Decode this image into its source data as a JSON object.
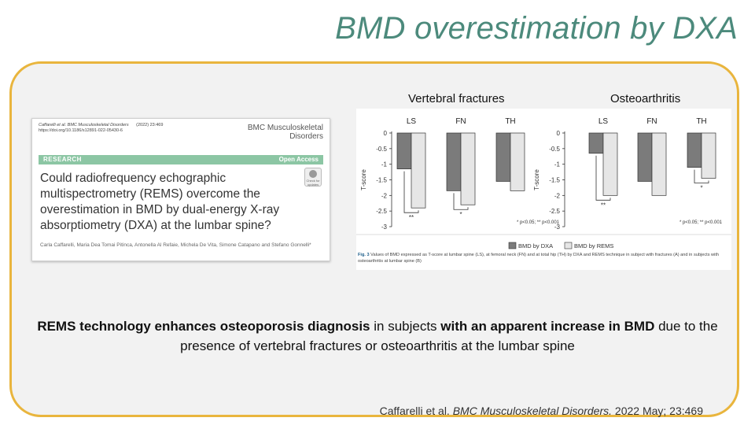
{
  "slide": {
    "title": "BMD overestimation by DXA"
  },
  "paper": {
    "citation_line1_journal": "Caffarelli et al. BMC Musculoskeletal Disorders",
    "citation_line1_volume": "(2022) 23:469",
    "citation_line2": "https://doi.org/10.1186/s12891-022-05430-6",
    "journal": "BMC Musculoskeletal Disorders",
    "section": "RESEARCH",
    "access": "Open Access",
    "badge": "Check for updates",
    "title": "Could radiofrequency echographic multispectrometry (REMS) overcome the overestimation in BMD by dual-energy X-ray absorptiometry (DXA) at the lumbar spine?",
    "authors": "Carla Caffarelli, Maria Dea Tomai Pitinca, Antonella Al Refaie, Michela De Vita, Simone Catapano and Stefano Gonnelli*"
  },
  "chart_data": [
    {
      "type": "bar",
      "title": "Vertebral fractures",
      "categories": [
        "LS",
        "FN",
        "TH"
      ],
      "ylabel": "T-score",
      "ylim": [
        -3,
        0
      ],
      "yticks": [
        "0",
        "-0.5",
        "-1",
        "-1.5",
        "-2",
        "-2.5",
        "-3"
      ],
      "series": [
        {
          "name": "BMD by DXA",
          "color": "#7b7b7b",
          "values": [
            -1.15,
            -1.85,
            -1.55
          ]
        },
        {
          "name": "BMD by REMS",
          "color": "#e6e6e6",
          "values": [
            -2.4,
            -2.3,
            -1.85
          ]
        }
      ],
      "significance": [
        "**",
        "*",
        ""
      ],
      "footnote": "* p<0.05; ** p<0.001"
    },
    {
      "type": "bar",
      "title": "Osteoarthritis",
      "categories": [
        "LS",
        "FN",
        "TH"
      ],
      "ylabel": "T-score",
      "ylim": [
        -3,
        0
      ],
      "yticks": [
        "0",
        "-0.5",
        "-1",
        "-1.5",
        "-2",
        "-2.5",
        "-3"
      ],
      "series": [
        {
          "name": "BMD by DXA",
          "color": "#7b7b7b",
          "values": [
            -0.65,
            -1.55,
            -1.1
          ]
        },
        {
          "name": "BMD by REMS",
          "color": "#e6e6e6",
          "values": [
            -2.0,
            -2.0,
            -1.45
          ]
        }
      ],
      "significance": [
        "**",
        "",
        "*"
      ],
      "footnote": "* p<0.05; ** p<0.001"
    }
  ],
  "legend": {
    "dxa": "BMD by DXA",
    "rems": "BMD by REMS"
  },
  "figure_caption": {
    "label": "Fig. 3",
    "text": "Values of BMD expressed as T-score at lumbar spine (LS), at femoral neck (FN) and at total hip (TH) by DXA and REMS technique in subject with fractures (A) and in subjects with osteoarthritis at lumbar spine (B)"
  },
  "summary": {
    "bold1": "REMS technology enhances osteoporosis diagnosis",
    "text1": " in subjects ",
    "bold2": "with an apparent increase in BMD",
    "text2": " due to the presence of vertebral fractures or osteoarthritis at the lumbar spine"
  },
  "citation": {
    "authors": "Caffarelli et al. ",
    "journal": "BMC Musculoskeletal Disorders.",
    "rest": " 2022 May; 23:469"
  }
}
